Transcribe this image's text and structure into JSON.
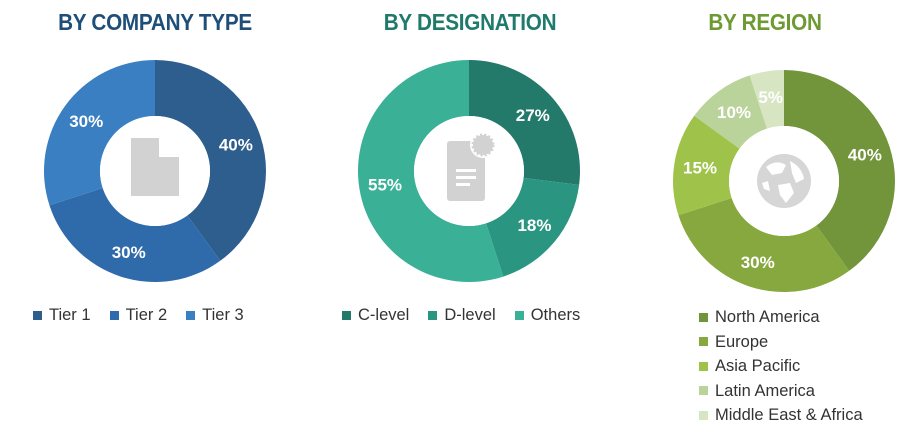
{
  "chart_data": [
    {
      "type": "pie",
      "title": "BY COMPANY TYPE",
      "title_color": "#1f4e79",
      "categories": [
        "Tier 1",
        "Tier 2",
        "Tier 3"
      ],
      "values": [
        40,
        30,
        30
      ],
      "labels": [
        "40%",
        "30%",
        "30%"
      ],
      "colors": [
        "#2e5e8e",
        "#2f6aab",
        "#3a7fc1"
      ],
      "legend_position": "bottom",
      "icon": "building-icon"
    },
    {
      "type": "pie",
      "title": "BY DESIGNATION",
      "title_color": "#1f7a6b",
      "categories": [
        "C-level",
        "D-level",
        "Others"
      ],
      "values": [
        27,
        18,
        55
      ],
      "labels": [
        "27%",
        "18%",
        "55%"
      ],
      "colors": [
        "#247a6a",
        "#2a9681",
        "#3ab097"
      ],
      "legend_position": "bottom",
      "icon": "certificate-document-icon"
    },
    {
      "type": "pie",
      "title": "BY REGION",
      "title_color": "#6e9a34",
      "categories": [
        "North America",
        "Europe",
        "Asia Pacific",
        "Latin America",
        "Middle East & Africa"
      ],
      "values": [
        40,
        30,
        15,
        10,
        5
      ],
      "labels": [
        "40%",
        "30%",
        "15%",
        "10%",
        "5%"
      ],
      "colors": [
        "#72943a",
        "#86a83e",
        "#9fc24a",
        "#b9d39a",
        "#d7e5c3"
      ],
      "legend_position": "bottom",
      "icon": "globe-icon"
    }
  ]
}
